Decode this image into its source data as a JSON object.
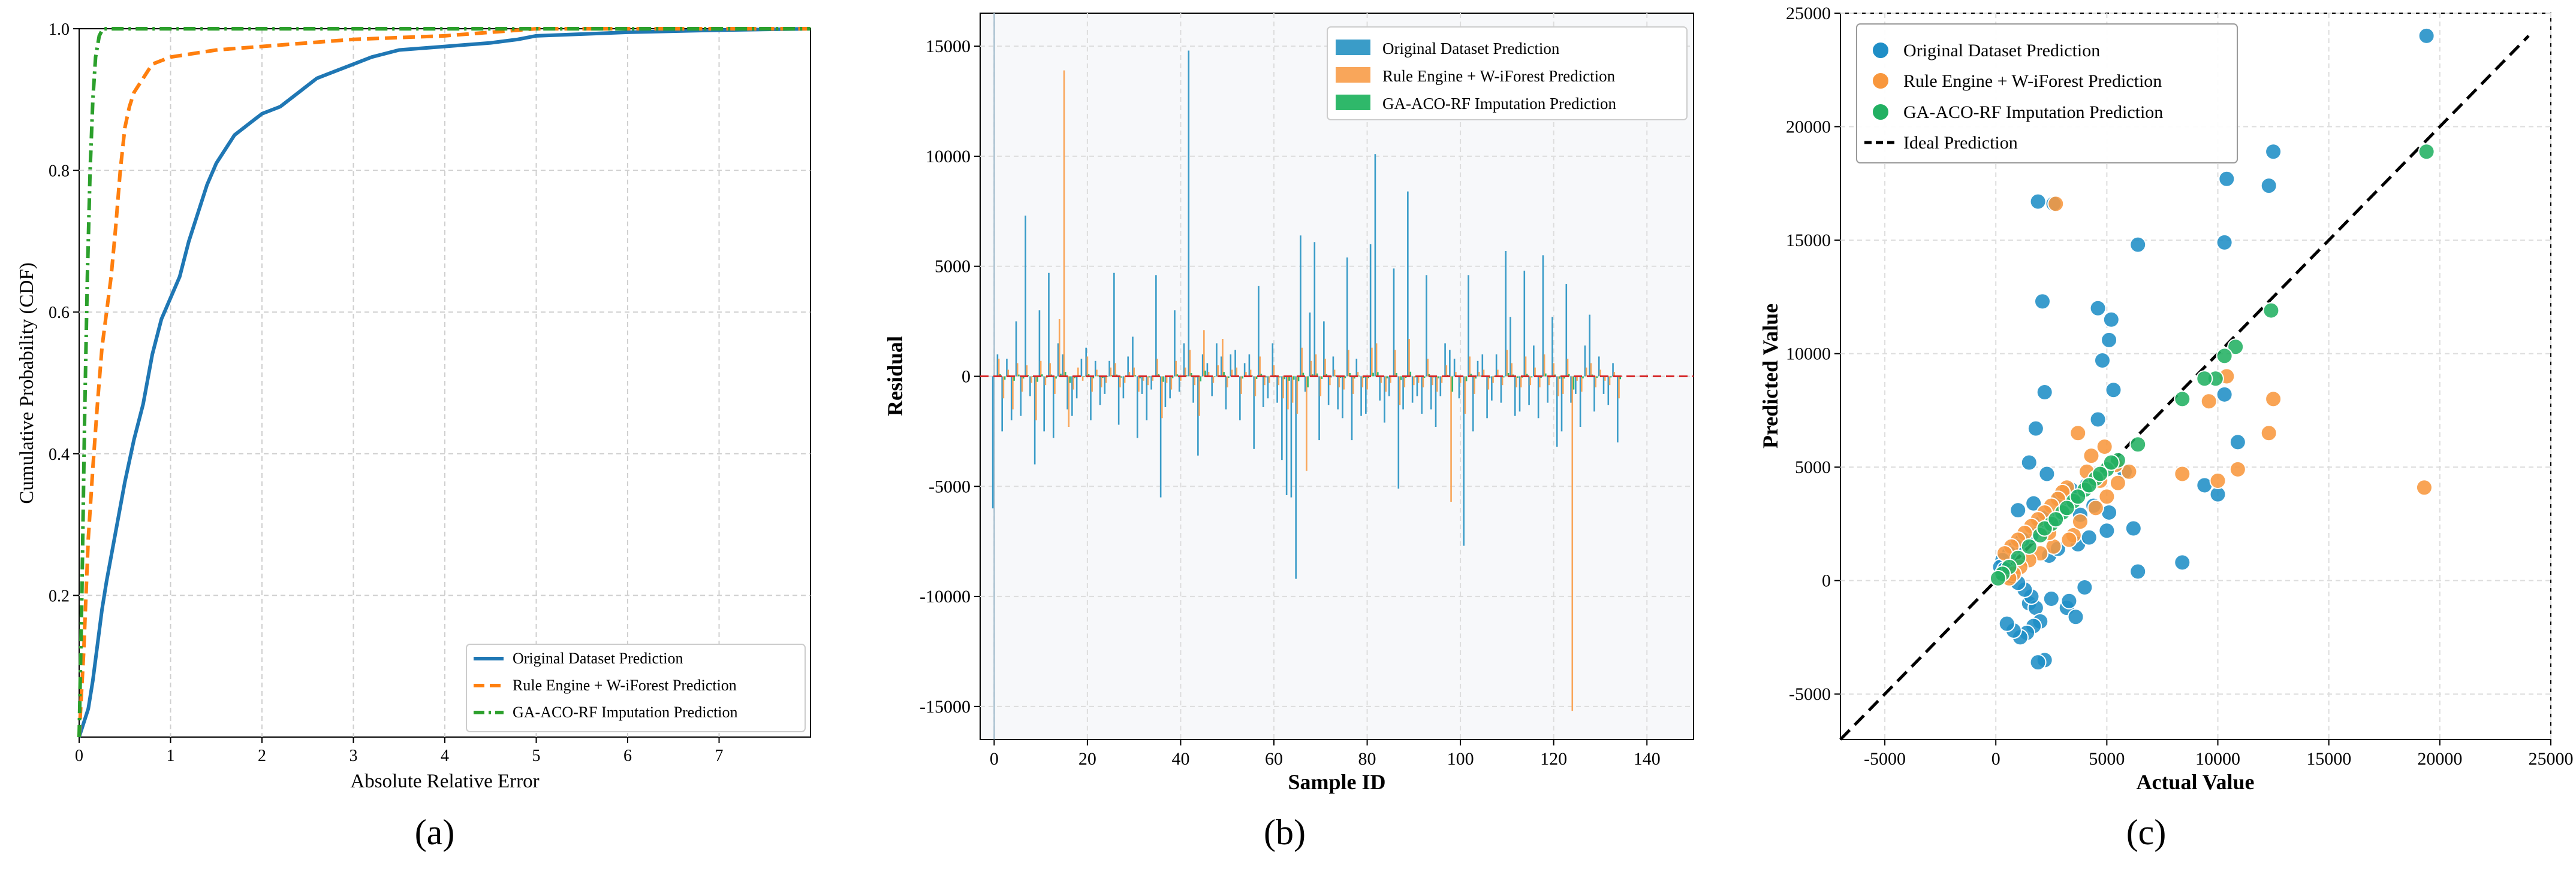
{
  "figure": {
    "panel_labels": [
      "(a)",
      "(b)",
      "(c)"
    ]
  },
  "colors": {
    "blue": "#1f77b4",
    "orange": "#ff7f0e",
    "green": "#2ca02c",
    "bar_blue": "#3a9cc8",
    "bar_orange": "#f9a65a",
    "bar_green": "#2fb86a",
    "sc_blue": "#1f8ec6",
    "sc_orange": "#f8973d",
    "sc_green": "#22b062",
    "red_line": "#d62728",
    "grid": "#cfcfcf",
    "panel_bg_b": "#f7f8fa"
  },
  "chart_data": [
    {
      "id": "a",
      "type": "line",
      "title": "",
      "xlabel": "Absolute Relative Error",
      "ylabel": "Cumulative Probability (CDF)",
      "xlim": [
        0,
        8
      ],
      "ylim": [
        0,
        1.0
      ],
      "xticks": [
        0,
        1,
        2,
        3,
        4,
        5,
        6,
        7
      ],
      "yticks": [
        0.2,
        0.4,
        0.6,
        0.8,
        1.0
      ],
      "yticklabels": [
        "0.2",
        "0.4",
        "0.6",
        "0.8",
        "1.0"
      ],
      "grid": true,
      "legend_position": "lower-right",
      "series": [
        {
          "name": "Original Dataset Prediction",
          "style": "solid",
          "color": "blue",
          "x": [
            0,
            0.05,
            0.1,
            0.15,
            0.2,
            0.25,
            0.3,
            0.4,
            0.5,
            0.6,
            0.7,
            0.8,
            0.9,
            1.0,
            1.1,
            1.2,
            1.3,
            1.4,
            1.5,
            1.6,
            1.7,
            1.8,
            1.9,
            2.0,
            2.2,
            2.4,
            2.6,
            2.8,
            3.0,
            3.2,
            3.5,
            4.0,
            4.5,
            4.8,
            5.0,
            6.0,
            7.0,
            8.0
          ],
          "y": [
            0.0,
            0.02,
            0.04,
            0.08,
            0.13,
            0.18,
            0.22,
            0.29,
            0.36,
            0.42,
            0.47,
            0.54,
            0.59,
            0.62,
            0.65,
            0.7,
            0.74,
            0.78,
            0.81,
            0.83,
            0.85,
            0.86,
            0.87,
            0.88,
            0.89,
            0.91,
            0.93,
            0.94,
            0.95,
            0.96,
            0.97,
            0.975,
            0.98,
            0.985,
            0.99,
            0.995,
            0.998,
            1.0
          ]
        },
        {
          "name": "Rule Engine + W-iForest Prediction",
          "style": "dashed",
          "color": "orange",
          "x": [
            0,
            0.05,
            0.1,
            0.15,
            0.2,
            0.25,
            0.3,
            0.35,
            0.4,
            0.45,
            0.5,
            0.55,
            0.6,
            0.7,
            0.8,
            1.0,
            1.5,
            2.0,
            3.0,
            4.0,
            5.0,
            6.0,
            8.0
          ],
          "y": [
            0.0,
            0.12,
            0.28,
            0.38,
            0.47,
            0.55,
            0.6,
            0.65,
            0.72,
            0.8,
            0.86,
            0.89,
            0.91,
            0.93,
            0.95,
            0.96,
            0.97,
            0.975,
            0.985,
            0.99,
            1.0,
            1.0,
            1.0
          ]
        },
        {
          "name": "GA-ACO-RF Imputation Prediction",
          "style": "dashdot",
          "color": "green",
          "x": [
            0,
            0.03,
            0.06,
            0.09,
            0.12,
            0.15,
            0.18,
            0.22,
            0.26,
            0.3,
            8.0
          ],
          "y": [
            0.0,
            0.2,
            0.45,
            0.65,
            0.8,
            0.9,
            0.96,
            0.99,
            1.0,
            1.0,
            1.0
          ]
        }
      ]
    },
    {
      "id": "b",
      "type": "bar",
      "title": "",
      "xlabel": "Sample ID",
      "ylabel": "Residual",
      "xlim": [
        -3,
        150
      ],
      "ylim": [
        -16500,
        16500
      ],
      "xticks": [
        0,
        20,
        40,
        60,
        80,
        100,
        120,
        140
      ],
      "yticks": [
        -15000,
        -10000,
        -5000,
        0,
        5000,
        10000,
        15000
      ],
      "grid": true,
      "legend_position": "top-right",
      "zero_line": "red dashed at 0",
      "series": [
        {
          "name": "Original Dataset Prediction",
          "color": "bar_blue",
          "values": [
            -6000,
            1000,
            -2500,
            800,
            -2000,
            2500,
            -1800,
            7300,
            -900,
            -4000,
            3000,
            -2500,
            4700,
            -2800,
            1500,
            1000,
            -1500,
            -1800,
            -1000,
            800,
            1300,
            -2000,
            700,
            -1300,
            -800,
            700,
            4700,
            -2200,
            -1000,
            900,
            1800,
            -2800,
            -800,
            -2000,
            -600,
            4600,
            -5500,
            -1400,
            -1000,
            3000,
            -700,
            1500,
            14800,
            -1200,
            -3600,
            1000,
            600,
            -900,
            1500,
            900,
            -1500,
            1000,
            1200,
            -2000,
            600,
            1000,
            -3300,
            4100,
            -1400,
            -1000,
            1500,
            -1200,
            -3800,
            -5400,
            -5500,
            -9200,
            6400,
            -700,
            2900,
            6100,
            -2900,
            2500,
            -1300,
            900,
            -1500,
            -1900,
            5400,
            -2900,
            800,
            -1800,
            -1700,
            6000,
            10100,
            -1100,
            -2100,
            -900,
            4900,
            -5100,
            -1500,
            8400,
            -1200,
            -900,
            -1700,
            4600,
            -1500,
            -2300,
            -900,
            1500,
            1200,
            800,
            -1000,
            -7700,
            4600,
            -2500,
            700,
            1000,
            -1900,
            -1100,
            1000,
            -1200,
            5700,
            2700,
            -1800,
            -1600,
            4800,
            -1300,
            1400,
            -1900,
            5500,
            -1200,
            2700,
            -3200,
            -2500,
            4200,
            -1200,
            -800,
            -2300,
            1400,
            2800,
            -1600,
            900,
            -800,
            -1300,
            600,
            -3000
          ]
        },
        {
          "name": "Rule Engine + W-iForest Prediction",
          "color": "bar_orange",
          "values": [
            0,
            800,
            -1000,
            300,
            -1500,
            600,
            -700,
            500,
            -300,
            -2000,
            700,
            -400,
            600,
            -800,
            2600,
            13900,
            -2300,
            -600,
            400,
            -200,
            900,
            -700,
            300,
            -500,
            -300,
            400,
            600,
            -500,
            -300,
            200,
            400,
            -700,
            -200,
            -400,
            -200,
            800,
            -1900,
            -300,
            -600,
            700,
            -200,
            400,
            1200,
            -400,
            -1800,
            2100,
            200,
            -300,
            500,
            1700,
            -500,
            300,
            400,
            -800,
            200,
            300,
            -900,
            900,
            -400,
            -300,
            500,
            -400,
            -1000,
            -1500,
            -1200,
            -1700,
            1300,
            -4300,
            700,
            1000,
            -900,
            800,
            -400,
            300,
            -500,
            -600,
            1200,
            -800,
            200,
            -500,
            -600,
            1300,
            1500,
            -300,
            -700,
            -300,
            1200,
            -1300,
            -500,
            1700,
            -400,
            -300,
            -500,
            800,
            -400,
            -700,
            -300,
            500,
            -5700,
            200,
            -300,
            -1700,
            900,
            -800,
            200,
            300,
            -600,
            -300,
            300,
            -400,
            1200,
            600,
            -500,
            -500,
            900,
            -400,
            400,
            -500,
            1000,
            -400,
            600,
            -900,
            -800,
            800,
            -15200,
            -200,
            -700,
            400,
            600,
            -500,
            300,
            -200,
            -400,
            200,
            -1000
          ]
        },
        {
          "name": "GA-ACO-RF Imputation Prediction",
          "color": "bar_green",
          "values": [
            0,
            100,
            -150,
            50,
            -200,
            80,
            -100,
            60,
            -40,
            -250,
            90,
            -60,
            80,
            -100,
            120,
            200,
            -300,
            -80,
            50,
            -30,
            100,
            -90,
            40,
            -70,
            -40,
            50,
            80,
            -60,
            -40,
            30,
            50,
            -90,
            -30,
            -50,
            -30,
            100,
            -250,
            -40,
            -80,
            90,
            -30,
            50,
            150,
            -50,
            -230,
            260,
            30,
            -40,
            60,
            200,
            -70,
            40,
            50,
            -100,
            30,
            40,
            -120,
            110,
            -50,
            -40,
            60,
            -50,
            -130,
            -200,
            -150,
            -220,
            160,
            -500,
            90,
            130,
            -120,
            100,
            -50,
            40,
            -70,
            -80,
            150,
            -100,
            30,
            -70,
            -80,
            160,
            190,
            -40,
            -90,
            -40,
            150,
            -170,
            -70,
            210,
            -50,
            -40,
            -70,
            100,
            -50,
            -90,
            -40,
            70,
            -700,
            30,
            -40,
            -220,
            110,
            -100,
            30,
            40,
            -80,
            -40,
            40,
            -50,
            150,
            80,
            -70,
            -60,
            110,
            -50,
            50,
            -70,
            130,
            -50,
            80,
            -110,
            -100,
            100,
            -600,
            -30,
            -90,
            50,
            80,
            -70,
            40,
            -30,
            -50,
            30,
            -130
          ]
        }
      ]
    },
    {
      "id": "c",
      "type": "scatter",
      "title": "",
      "xlabel": "Actual Value",
      "ylabel": "Predicted Value",
      "xlim": [
        -7000,
        25000
      ],
      "ylim": [
        -7000,
        25000
      ],
      "xticks": [
        -5000,
        0,
        5000,
        10000,
        15000,
        20000,
        25000
      ],
      "yticks": [
        -5000,
        0,
        5000,
        10000,
        15000,
        20000,
        25000
      ],
      "grid": true,
      "legend_position": "top-left",
      "ideal_line": {
        "name": "Ideal Prediction",
        "from": [
          -7000,
          -7000
        ],
        "to": [
          24000,
          24000
        ]
      },
      "series": [
        {
          "name": "Original Dataset Prediction",
          "color": "sc_blue",
          "x": [
            1900,
            2600,
            2100,
            19400,
            12500,
            10400,
            12300,
            10300,
            6400,
            4600,
            5200,
            5100,
            4800,
            2200,
            1800,
            1500,
            2300,
            4600,
            5300,
            5800,
            4100,
            3500,
            3000,
            4400,
            5100,
            3800,
            2600,
            2100,
            1600,
            1200,
            900,
            600,
            300,
            200,
            1500,
            1800,
            2000,
            1700,
            1400,
            1100,
            800,
            500,
            2500,
            3200,
            3600,
            4000,
            6200,
            6400,
            8400,
            9400,
            10000,
            10300,
            10900,
            2200,
            1900,
            1600,
            1300,
            1000,
            700,
            400,
            2400,
            2800,
            3300,
            3700,
            4200,
            5000,
            2000,
            2300,
            1000,
            1700,
            2900,
            3400
          ],
          "y": [
            16700,
            16600,
            12300,
            24000,
            18900,
            17700,
            17400,
            14900,
            14800,
            12000,
            11500,
            10600,
            9700,
            8300,
            6700,
            5200,
            4700,
            7100,
            8400,
            4800,
            4200,
            3800,
            3600,
            3300,
            3000,
            2900,
            2600,
            2300,
            2000,
            1800,
            1500,
            1200,
            900,
            600,
            -1000,
            -1200,
            -1800,
            -2000,
            -2300,
            -2500,
            -2200,
            -1900,
            -800,
            -1200,
            -1600,
            -300,
            2300,
            400,
            800,
            4200,
            3800,
            8200,
            6100,
            -3500,
            -3600,
            -700,
            -400,
            -100,
            200,
            500,
            1100,
            1400,
            -900,
            1600,
            1900,
            2200,
            2500,
            2800,
            3100,
            3400,
            3700,
            4000
          ]
        },
        {
          "name": "Rule Engine + W-iForest Prediction",
          "color": "sc_orange",
          "x": [
            2700,
            19300,
            12500,
            12300,
            10900,
            10000,
            10400,
            9600,
            8400,
            4300,
            4100,
            4700,
            3200,
            3000,
            2800,
            2500,
            2200,
            1900,
            1600,
            1300,
            1000,
            700,
            400,
            3500,
            3800,
            4500,
            5000,
            5500,
            6000,
            3300,
            2600,
            2000,
            1500,
            1100,
            800,
            600,
            3700,
            4900,
            5400,
            2400
          ],
          "y": [
            16600,
            4100,
            8000,
            6500,
            4900,
            4400,
            9000,
            7900,
            4700,
            5500,
            4800,
            4400,
            4100,
            3900,
            3600,
            3300,
            3000,
            2700,
            2400,
            2100,
            1800,
            1500,
            1200,
            2000,
            2600,
            3200,
            3700,
            4300,
            4800,
            1800,
            1500,
            1200,
            900,
            600,
            300,
            100,
            6500,
            5900,
            5100,
            2100
          ]
        },
        {
          "name": "GA-ACO-RF Imputation Prediction",
          "color": "sc_green",
          "x": [
            19400,
            12400,
            10800,
            10300,
            9900,
            9400,
            8400,
            6400,
            5500,
            5000,
            4500,
            4000,
            3500,
            3000,
            2500,
            2000,
            1500,
            1000,
            600,
            300,
            100,
            2200,
            2700,
            3200,
            3700,
            4200,
            4700,
            5200
          ],
          "y": [
            18900,
            11900,
            10300,
            9900,
            8900,
            8900,
            8000,
            6000,
            5300,
            4900,
            4500,
            4000,
            3500,
            3000,
            2500,
            2000,
            1500,
            1000,
            600,
            300,
            100,
            2300,
            2700,
            3200,
            3700,
            4200,
            4700,
            5200
          ]
        }
      ]
    }
  ]
}
